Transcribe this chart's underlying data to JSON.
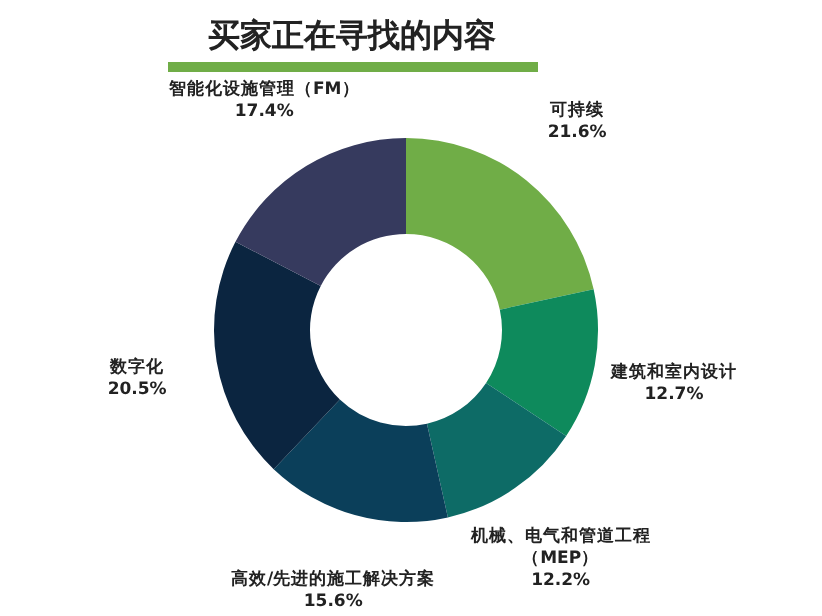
{
  "chart_data": {
    "type": "donut",
    "title": "买家正在寻找的内容",
    "categories": [
      "可持续",
      "建筑和室内设计",
      "机械、电气和管道工程（MEP）",
      "高效/先进的施工解决方案",
      "数字化",
      "智能化设施管理（FM）"
    ],
    "values": [
      21.6,
      12.7,
      12.2,
      15.6,
      20.5,
      17.4
    ],
    "value_labels": [
      "21.6%",
      "12.7%",
      "12.2%",
      "15.6%",
      "20.5%",
      "17.4%"
    ],
    "colors": [
      "#70ad47",
      "#0e8a5c",
      "#0d6b66",
      "#0b3f5a",
      "#0b2540",
      "#363a5e"
    ]
  }
}
